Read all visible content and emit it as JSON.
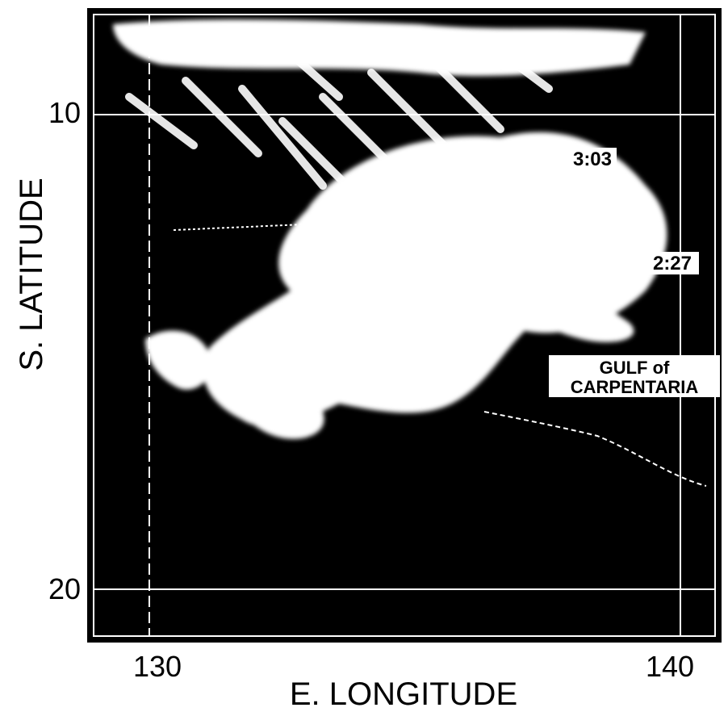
{
  "axes": {
    "y_label": "S. LATITUDE",
    "x_label": "E. LONGITUDE",
    "y_ticks": [
      "10",
      "20"
    ],
    "x_ticks": [
      "130",
      "140"
    ]
  },
  "annotations": {
    "time_1": "3:03",
    "time_2": "2:27",
    "region": [
      "GULF of",
      "CARPENTARIA"
    ]
  }
}
